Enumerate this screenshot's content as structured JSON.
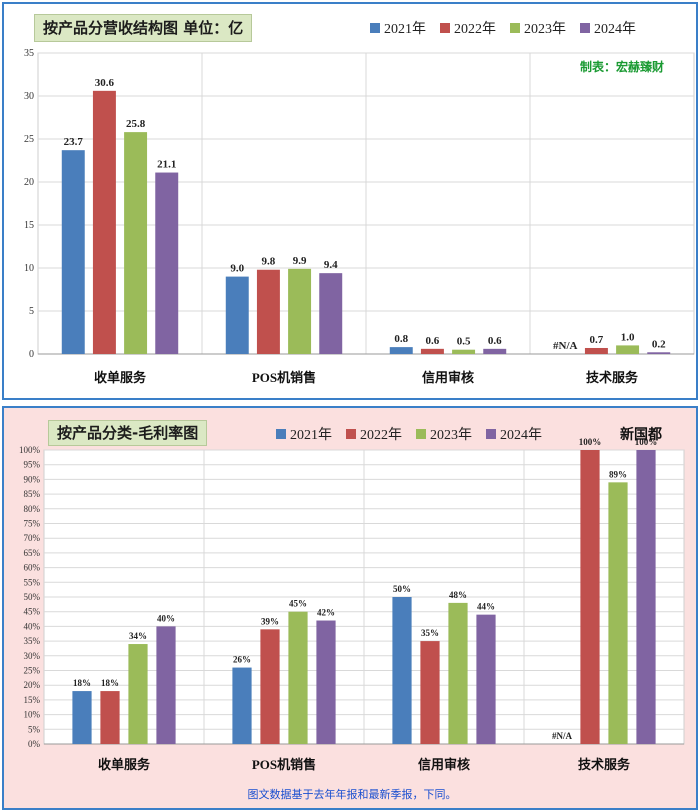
{
  "colors": {
    "s2021": "#4a7ebb",
    "s2022": "#c0504d",
    "s2023": "#9bbb59",
    "s2024": "#8064a2"
  },
  "top": {
    "title": "按产品分营收结构图  单位：亿",
    "credit": "制表：宏赫臻财"
  },
  "bottom": {
    "title": "按产品分类-毛利率图",
    "watermark": "新国都",
    "footnote": "图文数据基于去年年报和最新季报，下同。"
  },
  "chart_data": [
    {
      "type": "bar",
      "title": "按产品分营收结构图  单位：亿",
      "categories": [
        "收单服务",
        "POS机销售",
        "信用审核",
        "技术服务"
      ],
      "series": [
        {
          "name": "2021年",
          "values": [
            23.7,
            9.0,
            0.8,
            null
          ],
          "labels": [
            "23.7",
            "9.0",
            "0.8",
            "#N/A"
          ]
        },
        {
          "name": "2022年",
          "values": [
            30.6,
            9.8,
            0.6,
            0.7
          ],
          "labels": [
            "30.6",
            "9.8",
            "0.6",
            "0.7"
          ]
        },
        {
          "name": "2023年",
          "values": [
            25.8,
            9.9,
            0.5,
            1.0
          ],
          "labels": [
            "25.8",
            "9.9",
            "0.5",
            "1.0"
          ]
        },
        {
          "name": "2024年",
          "values": [
            21.1,
            9.4,
            0.6,
            0.2
          ],
          "labels": [
            "21.1",
            "9.4",
            "0.6",
            "0.2"
          ]
        }
      ],
      "yticks": [
        "0",
        "5",
        "10",
        "15",
        "20",
        "25",
        "30",
        "35"
      ],
      "ylim": [
        0,
        35
      ],
      "grid": true,
      "legend": "top"
    },
    {
      "type": "bar",
      "title": "按产品分类-毛利率图",
      "categories": [
        "收单服务",
        "POS机销售",
        "信用审核",
        "技术服务"
      ],
      "series": [
        {
          "name": "2021年",
          "values": [
            18,
            26,
            50,
            null
          ],
          "labels": [
            "18%",
            "26%",
            "50%",
            "#N/A"
          ]
        },
        {
          "name": "2022年",
          "values": [
            18,
            39,
            35,
            100
          ],
          "labels": [
            "18%",
            "39%",
            "35%",
            "100%"
          ]
        },
        {
          "name": "2023年",
          "values": [
            34,
            45,
            48,
            89
          ],
          "labels": [
            "34%",
            "45%",
            "48%",
            "89%"
          ]
        },
        {
          "name": "2024年",
          "values": [
            40,
            42,
            44,
            100
          ],
          "labels": [
            "40%",
            "42%",
            "44%",
            "100%"
          ]
        }
      ],
      "yticks": [
        "0%",
        "5%",
        "10%",
        "15%",
        "20%",
        "25%",
        "30%",
        "35%",
        "40%",
        "45%",
        "50%",
        "55%",
        "60%",
        "65%",
        "70%",
        "75%",
        "80%",
        "85%",
        "90%",
        "95%",
        "100%"
      ],
      "ylim": [
        0,
        100
      ],
      "grid": true,
      "legend": "top"
    }
  ]
}
